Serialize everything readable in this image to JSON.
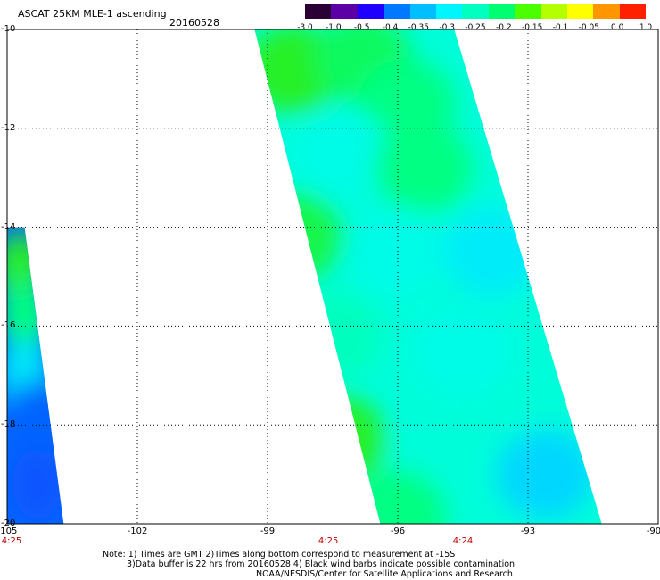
{
  "header": {
    "title": "ASCAT 25KM MLE-1 ascending",
    "date": "20160528"
  },
  "legend": {
    "labels": [
      "-3.0",
      "-1.0",
      "-0.5",
      "-0.4",
      "-0.35",
      "-0.3",
      "-0.25",
      "-0.2",
      "-0.15",
      "-0.1",
      "-0.05",
      "0.0",
      "1.0"
    ],
    "colors": [
      "#2a0035",
      "#5a00a6",
      "#1e00ff",
      "#0078ff",
      "#00beff",
      "#00f5ff",
      "#00ffc0",
      "#00ff70",
      "#4cff00",
      "#b4ff00",
      "#ffff00",
      "#ff9600",
      "#ff2000"
    ]
  },
  "axes": {
    "lat_labels": [
      "-10",
      "-12",
      "-14",
      "-16",
      "-18",
      "-20"
    ],
    "lon_labels": [
      "-105",
      "-102",
      "-99",
      "-96",
      "-93",
      "-90"
    ],
    "time_labels": [
      "4:25",
      "4:25",
      "4:24"
    ]
  },
  "notes": {
    "line1": "Note: 1) Times are GMT 2)Times along bottom correspond to measurement at -15S",
    "line2": "3)Data buffer is 22 hrs from 20160528 4) Black wind barbs indicate possible contamination",
    "line3": "NOAA/NESDIS/Center for Satellite Applications and Research"
  },
  "map_data": {
    "lon_range": [
      -105,
      -90
    ],
    "lat_range": [
      -20,
      -10
    ],
    "grid_lons": [
      -102,
      -99,
      -96,
      -93
    ],
    "grid_lats": [
      -12,
      -14,
      -16,
      -18
    ],
    "swaths": [
      {
        "name": "main",
        "corners_lon_lat": [
          [
            -99.3,
            -10
          ],
          [
            -94.7,
            -10
          ],
          [
            -91.3,
            -20
          ],
          [
            -96.4,
            -20
          ]
        ]
      },
      {
        "name": "west",
        "corners_lon_lat": [
          [
            -105,
            -14
          ],
          [
            -104.6,
            -14
          ],
          [
            -103.7,
            -20
          ],
          [
            -105,
            -20
          ]
        ]
      }
    ],
    "value_patches": [
      {
        "lon": -98.4,
        "lat": -10.8,
        "value": -0.15
      },
      {
        "lon": -96.8,
        "lat": -10.6,
        "value": -0.18
      },
      {
        "lon": -95.8,
        "lat": -11.5,
        "value": -0.2
      },
      {
        "lon": -97.3,
        "lat": -12.5,
        "value": -0.27
      },
      {
        "lon": -95.4,
        "lat": -12.8,
        "value": -0.2
      },
      {
        "lon": -98.4,
        "lat": -14.2,
        "value": -0.17
      },
      {
        "lon": -96.0,
        "lat": -14.5,
        "value": -0.27
      },
      {
        "lon": -93.8,
        "lat": -14.5,
        "value": -0.3
      },
      {
        "lon": -97.5,
        "lat": -16.2,
        "value": -0.24
      },
      {
        "lon": -94.5,
        "lat": -16.5,
        "value": -0.27
      },
      {
        "lon": -97.4,
        "lat": -18.3,
        "value": -0.15
      },
      {
        "lon": -95.0,
        "lat": -18.6,
        "value": -0.26
      },
      {
        "lon": -92.6,
        "lat": -19.0,
        "value": -0.33
      },
      {
        "lon": -96.0,
        "lat": -19.8,
        "value": -0.2
      },
      {
        "lon": -104.7,
        "lat": -14.8,
        "value": -0.15
      },
      {
        "lon": -104.6,
        "lat": -15.8,
        "value": -0.2
      },
      {
        "lon": -104.6,
        "lat": -17.0,
        "value": -0.3
      },
      {
        "lon": -104.4,
        "lat": -17.8,
        "value": -0.42
      },
      {
        "lon": -104.3,
        "lat": -19.2,
        "value": -0.45
      }
    ]
  }
}
